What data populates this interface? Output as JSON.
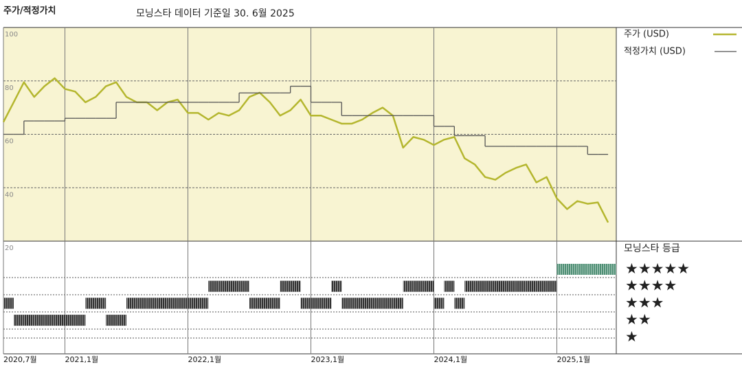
{
  "chart_data": {
    "type": "line",
    "title": "주가/적정가치",
    "subtitle": "모닝스타 데이터 기준일 30. 6월 2025",
    "x": [
      "2020-07",
      "2020-08",
      "2020-09",
      "2020-10",
      "2020-11",
      "2020-12",
      "2021-01",
      "2021-02",
      "2021-03",
      "2021-04",
      "2021-05",
      "2021-06",
      "2021-07",
      "2021-08",
      "2021-09",
      "2021-10",
      "2021-11",
      "2021-12",
      "2022-01",
      "2022-02",
      "2022-03",
      "2022-04",
      "2022-05",
      "2022-06",
      "2022-07",
      "2022-08",
      "2022-09",
      "2022-10",
      "2022-11",
      "2022-12",
      "2023-01",
      "2023-02",
      "2023-03",
      "2023-04",
      "2023-05",
      "2023-06",
      "2023-07",
      "2023-08",
      "2023-09",
      "2023-10",
      "2023-11",
      "2023-12",
      "2024-01",
      "2024-02",
      "2024-03",
      "2024-04",
      "2024-05",
      "2024-06",
      "2024-07",
      "2024-08",
      "2024-09",
      "2024-10",
      "2024-11",
      "2024-12",
      "2025-01",
      "2025-02",
      "2025-03",
      "2025-04",
      "2025-05",
      "2025-06"
    ],
    "xlim": [
      "2020-07",
      "2025-07"
    ],
    "xticks": [
      {
        "value": "2020-07",
        "label": "2020,7월"
      },
      {
        "value": "2021-01",
        "label": "2021,1월"
      },
      {
        "value": "2022-01",
        "label": "2022,1월"
      },
      {
        "value": "2023-01",
        "label": "2023,1월"
      },
      {
        "value": "2024-01",
        "label": "2024,1월"
      },
      {
        "value": "2025-01",
        "label": "2025,1월"
      }
    ],
    "ylim": [
      20,
      100
    ],
    "yticks": [
      100,
      80,
      60,
      40,
      20
    ],
    "grid": true,
    "legend": "right",
    "series": [
      {
        "name": "주가 (USD)",
        "color": "#b4b62e",
        "style": "line",
        "values": [
          64.6,
          72,
          79.5,
          74,
          78,
          81,
          77,
          76,
          72,
          74,
          78,
          79.5,
          74,
          72,
          72,
          69,
          72,
          73,
          68,
          68,
          65.5,
          68,
          67,
          69,
          74,
          75.6,
          72,
          67,
          69,
          73,
          67,
          67,
          65.5,
          64,
          64,
          65.5,
          68,
          70,
          67,
          55,
          59,
          58,
          56,
          58,
          59,
          51,
          48.7,
          44,
          43,
          45.6,
          47.4,
          48.7,
          42,
          44,
          36,
          32,
          35,
          34,
          34.5,
          27
        ]
      },
      {
        "name": "적정가치 (USD)",
        "color": "#555555",
        "style": "step",
        "values": [
          60,
          60,
          65,
          65,
          65,
          65,
          66,
          66,
          66,
          66,
          66,
          72,
          72,
          72,
          72,
          72,
          72,
          72,
          72,
          72,
          72,
          72,
          72,
          75.5,
          75.5,
          75.5,
          75.5,
          75.5,
          78,
          78,
          72,
          72,
          72,
          67,
          67,
          67,
          67,
          67,
          67,
          67,
          67,
          67,
          63,
          63,
          59.5,
          59.5,
          59.5,
          55.5,
          55.5,
          55.5,
          55.5,
          55.5,
          55.5,
          55.5,
          55.5,
          55.5,
          55.5,
          52.5,
          52.5,
          52.5
        ]
      }
    ],
    "ratings": {
      "name": "모닝스타 등급",
      "labels": [
        "★",
        "★★",
        "★★★",
        "★★★★",
        "★★★★★"
      ],
      "colors": [
        "#333333",
        "#333333",
        "#333333",
        "#333333",
        "#4e8f74"
      ],
      "values": [
        3,
        2,
        2,
        2,
        2,
        2,
        2,
        2,
        3,
        3,
        2,
        2,
        3,
        3,
        3,
        3,
        3,
        3,
        3,
        3,
        4,
        4,
        4,
        4,
        3,
        3,
        3,
        4,
        4,
        3,
        3,
        3,
        4,
        3,
        3,
        3,
        3,
        3,
        3,
        4,
        4,
        4,
        3,
        4,
        3,
        4,
        4,
        4,
        4,
        4,
        4,
        4,
        4,
        4,
        5,
        5,
        5,
        5,
        5,
        5
      ]
    }
  }
}
